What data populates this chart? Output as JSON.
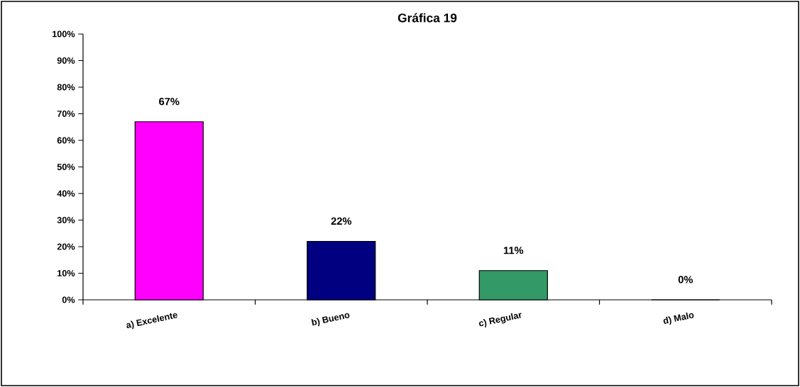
{
  "chart_data": {
    "type": "bar",
    "title": "Gráfica 19",
    "categories": [
      "a) Excelente",
      "b) Bueno",
      "c) Regular",
      "d) Malo"
    ],
    "values": [
      67,
      22,
      11,
      0
    ],
    "colors": [
      "#ff00ff",
      "#000080",
      "#339966",
      "#000000"
    ],
    "value_labels": [
      "67%",
      "22%",
      "11%",
      "0%"
    ],
    "ylim": [
      0,
      100
    ],
    "yticks": [
      {
        "value": 0,
        "label": "0%"
      },
      {
        "value": 10,
        "label": "10%"
      },
      {
        "value": 20,
        "label": "20%"
      },
      {
        "value": 30,
        "label": "30%"
      },
      {
        "value": 40,
        "label": "40%"
      },
      {
        "value": 50,
        "label": "50%"
      },
      {
        "value": 60,
        "label": "60%"
      },
      {
        "value": 70,
        "label": "70%"
      },
      {
        "value": 80,
        "label": "80%"
      },
      {
        "value": 90,
        "label": "90%"
      },
      {
        "value": 100,
        "label": "100%"
      }
    ],
    "grid": false
  }
}
